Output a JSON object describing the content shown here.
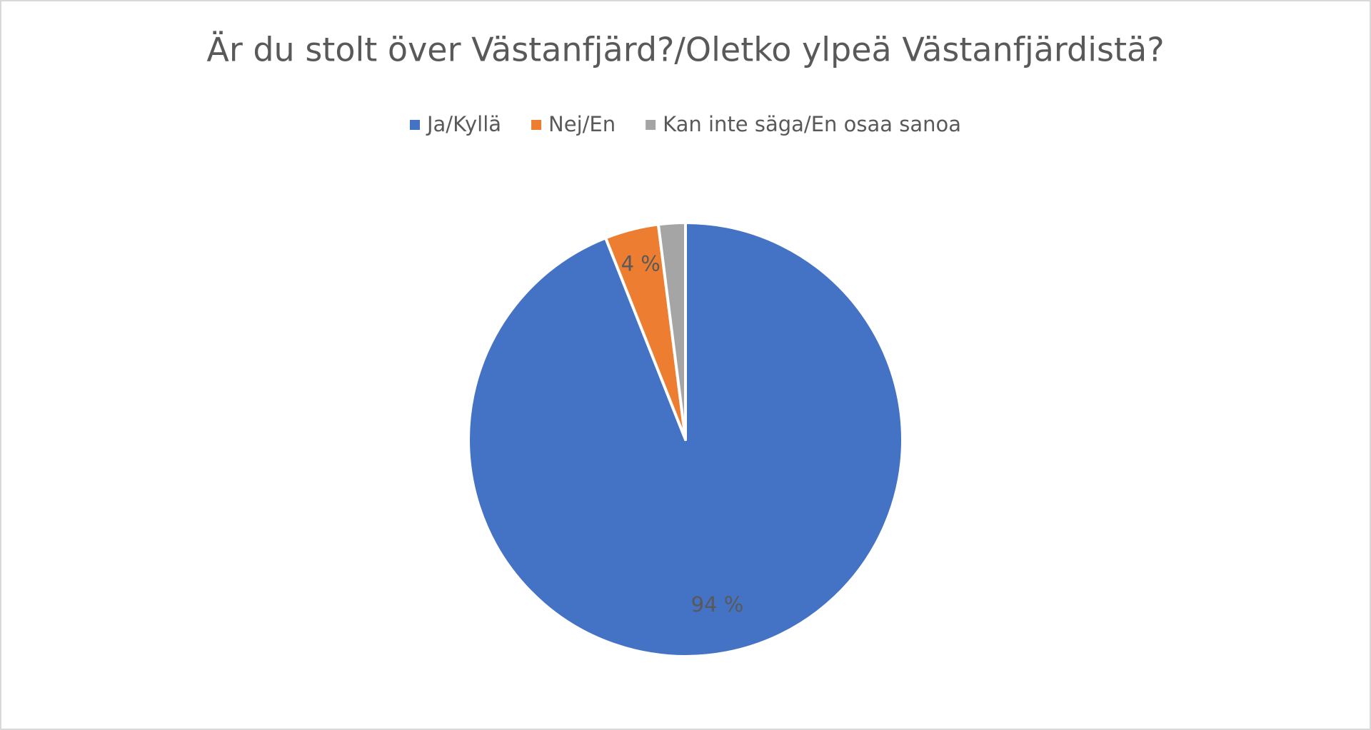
{
  "chart_data": {
    "type": "pie",
    "title": "Är du stolt över Västanfjärd?/Oletko ylpeä Västanfjärdistä?",
    "categories": [
      "Ja/Kyllä",
      "Nej/En",
      "Kan inte säga/En osaa sanoa"
    ],
    "values": [
      94,
      4,
      2
    ],
    "value_labels": [
      "94 %",
      "4 %",
      null
    ],
    "colors": [
      "#4472c4",
      "#ed7d31",
      "#a5a5a5"
    ],
    "legend": "top"
  }
}
